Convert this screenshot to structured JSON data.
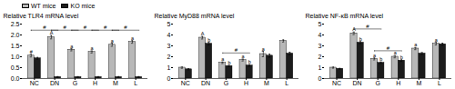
{
  "chart_data": [
    {
      "type": "bar",
      "ylabel": "Relative TLR4 mRNA level",
      "categories": [
        "NC",
        "DN",
        "G",
        "H",
        "M",
        "L"
      ],
      "series": [
        {
          "name": "WT mice",
          "color": "#b8b8b8",
          "values": [
            1.05,
            1.9,
            1.32,
            1.22,
            1.55,
            1.68
          ],
          "errors": [
            0.06,
            0.08,
            0.05,
            0.05,
            0.07,
            0.06
          ]
        },
        {
          "name": "KO mice",
          "color": "#1c1c1c",
          "values": [
            0.93,
            0.07,
            0.07,
            0.07,
            0.07,
            0.07
          ],
          "errors": [
            0.04,
            0.02,
            0.02,
            0.02,
            0.02,
            0.02
          ]
        }
      ],
      "ylim": [
        0,
        2.5
      ],
      "yticks": [
        {
          "value": 0,
          "label": "0.0"
        },
        0.5,
        {
          "value": 1,
          "label": "1.0"
        },
        1.5,
        {
          "value": 2,
          "label": "2.0"
        },
        2.5
      ],
      "brackets": [
        {
          "from": "NC",
          "to": "DN",
          "y": 2.22,
          "label": "#"
        },
        {
          "from": "DN",
          "to": "G",
          "y": 2.22,
          "label": "#"
        },
        {
          "from": "G",
          "to": "H",
          "y": 2.22,
          "label": "#"
        },
        {
          "from": "H",
          "to": "M",
          "y": 2.22,
          "label": "#"
        },
        {
          "from": "M",
          "to": "L",
          "y": 2.22,
          "label": "#"
        }
      ],
      "annotations": [
        {
          "category": "NC",
          "series": "WT mice",
          "text": "#"
        },
        {
          "category": "DN",
          "series": "WT mice",
          "text": "A"
        },
        {
          "category": "G",
          "series": "WT mice",
          "text": "a"
        },
        {
          "category": "H",
          "series": "WT mice",
          "text": "a"
        },
        {
          "category": "M",
          "series": "WT mice",
          "text": "a"
        },
        {
          "category": "L",
          "series": "WT mice",
          "text": "a"
        }
      ],
      "legend": "upper left"
    },
    {
      "type": "bar",
      "ylabel": "Relative MyD88 mRNA level",
      "categories": [
        "NC",
        "DN",
        "G",
        "H",
        "M",
        "L"
      ],
      "series": [
        {
          "name": "WT mice",
          "color": "#b8b8b8",
          "values": [
            1.0,
            3.75,
            1.45,
            1.7,
            2.25,
            3.45
          ],
          "errors": [
            0.06,
            0.12,
            0.07,
            0.09,
            0.25,
            0.1
          ]
        },
        {
          "name": "KO mice",
          "color": "#1c1c1c",
          "values": [
            0.85,
            3.2,
            1.15,
            1.2,
            2.1,
            2.3
          ],
          "errors": [
            0.05,
            0.12,
            0.06,
            0.08,
            0.15,
            0.12
          ]
        }
      ],
      "ylim": [
        0,
        5
      ],
      "yticks": [
        0,
        1,
        2,
        3,
        4,
        5
      ],
      "brackets": [
        {
          "from": "G",
          "to": "H",
          "y": 2.35,
          "label": "#"
        }
      ],
      "annotations": [
        {
          "category": "DN",
          "series": "WT mice",
          "text": "A"
        },
        {
          "category": "G",
          "series": "WT mice",
          "text": "a"
        },
        {
          "category": "H",
          "series": "WT mice",
          "text": "a"
        },
        {
          "category": "M",
          "series": "WT mice",
          "text": "a"
        },
        {
          "category": "DN",
          "series": "KO mice",
          "text": "b"
        },
        {
          "category": "G",
          "series": "KO mice",
          "text": "b"
        },
        {
          "category": "H",
          "series": "KO mice",
          "text": "b"
        }
      ]
    },
    {
      "type": "bar",
      "ylabel": "Relative NF-κB mRNA level",
      "categories": [
        "NC",
        "DN",
        "G",
        "H",
        "M",
        "L"
      ],
      "series": [
        {
          "name": "WT mice",
          "color": "#b8b8b8",
          "values": [
            1.0,
            4.15,
            1.8,
            2.0,
            2.75,
            3.2
          ],
          "errors": [
            0.05,
            0.12,
            0.09,
            0.1,
            0.1,
            0.12
          ]
        },
        {
          "name": "KO mice",
          "color": "#1c1c1c",
          "values": [
            0.9,
            3.3,
            1.45,
            1.65,
            2.3,
            3.15
          ],
          "errors": [
            0.04,
            0.1,
            0.07,
            0.08,
            0.09,
            0.1
          ]
        }
      ],
      "ylim": [
        0,
        5
      ],
      "yticks": [
        0,
        1,
        2,
        3,
        4,
        5
      ],
      "brackets": [
        {
          "from": "DN",
          "to": "G",
          "y": 4.55,
          "label": "#"
        },
        {
          "from": "G",
          "to": "H",
          "y": 2.55,
          "label": "#"
        }
      ],
      "annotations": [
        {
          "category": "DN",
          "series": "WT mice",
          "text": "A"
        },
        {
          "category": "G",
          "series": "WT mice",
          "text": "a"
        },
        {
          "category": "H",
          "series": "WT mice",
          "text": "a"
        },
        {
          "category": "M",
          "series": "WT mice",
          "text": "a"
        },
        {
          "category": "L",
          "series": "WT mice",
          "text": "a"
        },
        {
          "category": "DN",
          "series": "KO mice",
          "text": "b"
        },
        {
          "category": "G",
          "series": "KO mice",
          "text": "b"
        },
        {
          "category": "H",
          "series": "KO mice",
          "text": "b"
        }
      ]
    }
  ]
}
